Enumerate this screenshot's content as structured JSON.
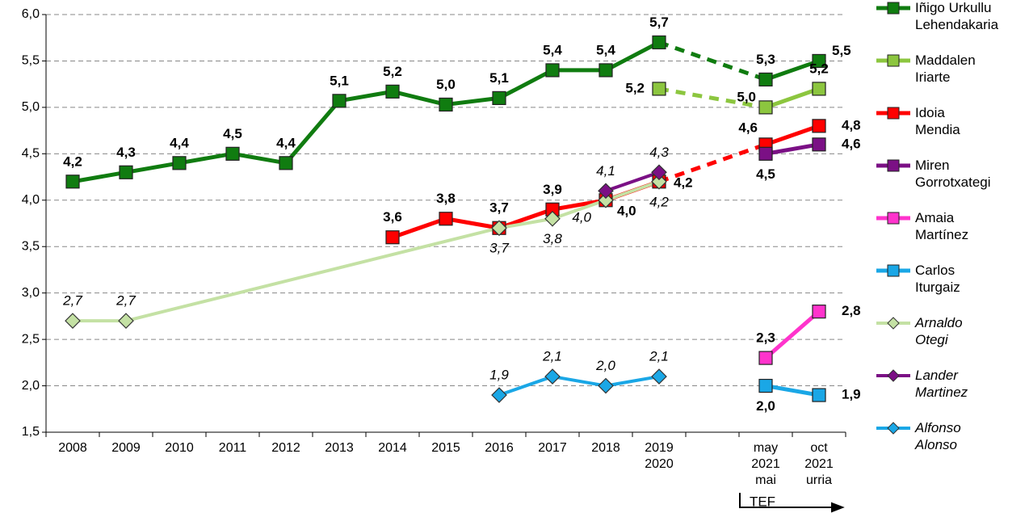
{
  "chart_data": {
    "type": "line",
    "categories": [
      "2008",
      "2009",
      "2010",
      "2011",
      "2012",
      "2013",
      "2014",
      "2015",
      "2016",
      "2017",
      "2018",
      "2019\n2020",
      null,
      "may\n2021\nmai",
      "oct\n2021\nurria"
    ],
    "ylim": [
      1.5,
      6.0
    ],
    "yticks": [
      {
        "value": 1.5,
        "label": "1,5"
      },
      {
        "value": 2.0,
        "label": "2,0"
      },
      {
        "value": 2.5,
        "label": "2,5"
      },
      {
        "value": 3.0,
        "label": "3,0"
      },
      {
        "value": 3.5,
        "label": "3,5"
      },
      {
        "value": 4.0,
        "label": "4,0"
      },
      {
        "value": 4.5,
        "label": "4,5"
      },
      {
        "value": 5.0,
        "label": "5,0"
      },
      {
        "value": 5.5,
        "label": "5,5"
      },
      {
        "value": 6.0,
        "label": "6,0"
      }
    ],
    "grid": true,
    "legend": "right",
    "annotations": [
      "TEF"
    ],
    "series": [
      {
        "name": "Iñigo Urkullu\nLehendakaria",
        "color": "#107c10",
        "marker": "square",
        "gap_style": "dashed",
        "values": [
          4.2,
          4.3,
          4.4,
          4.5,
          4.4,
          5.07,
          5.17,
          5.03,
          5.1,
          5.4,
          5.4,
          5.7,
          null,
          5.3,
          5.5
        ],
        "value_labels": [
          "4,2",
          "4,3",
          "4,4",
          "4,5",
          "4,4",
          "5,1",
          "5,2",
          "5,0",
          "5,1",
          "5,4",
          "5,4",
          "5,7",
          null,
          "5,3",
          "5,5"
        ]
      },
      {
        "name": "Maddalen\nIriarte",
        "color": "#8cc63f",
        "marker": "square",
        "gap_style": "dashed",
        "values": [
          null,
          null,
          null,
          null,
          null,
          null,
          null,
          null,
          null,
          null,
          null,
          5.2,
          null,
          5.0,
          5.2
        ],
        "value_labels": [
          null,
          null,
          null,
          null,
          null,
          null,
          null,
          null,
          null,
          null,
          null,
          "5,2",
          null,
          "5,0",
          "5,2"
        ]
      },
      {
        "name": "Idoia\nMendia",
        "color": "#ff0000",
        "marker": "square",
        "gap_style": "dashed",
        "values": [
          null,
          null,
          null,
          null,
          null,
          null,
          3.6,
          3.8,
          3.7,
          3.9,
          4.0,
          4.2,
          null,
          4.6,
          4.8
        ],
        "value_labels": [
          null,
          null,
          null,
          null,
          null,
          null,
          "3,6",
          "3,8",
          "3,7",
          "3,9",
          "4,0",
          "4,2",
          null,
          "4,6",
          "4,8"
        ]
      },
      {
        "name": "Miren\nGorrotxategi",
        "color": "#7b1085",
        "marker": "square",
        "values": [
          null,
          null,
          null,
          null,
          null,
          null,
          null,
          null,
          null,
          null,
          null,
          null,
          null,
          4.5,
          4.6
        ],
        "value_labels": [
          null,
          null,
          null,
          null,
          null,
          null,
          null,
          null,
          null,
          null,
          null,
          null,
          null,
          "4,5",
          "4,6"
        ]
      },
      {
        "name": "Amaia\nMartínez",
        "color": "#ff33cc",
        "marker": "square",
        "values": [
          null,
          null,
          null,
          null,
          null,
          null,
          null,
          null,
          null,
          null,
          null,
          null,
          null,
          2.3,
          2.8
        ],
        "value_labels": [
          null,
          null,
          null,
          null,
          null,
          null,
          null,
          null,
          null,
          null,
          null,
          null,
          null,
          "2,3",
          "2,8"
        ]
      },
      {
        "name": "Carlos\nIturgaiz",
        "color": "#1aa7e6",
        "marker": "square",
        "values": [
          null,
          null,
          null,
          null,
          null,
          null,
          null,
          null,
          null,
          null,
          null,
          null,
          null,
          2.0,
          1.9
        ],
        "value_labels": [
          null,
          null,
          null,
          null,
          null,
          null,
          null,
          null,
          null,
          null,
          null,
          null,
          null,
          "2,0",
          "1,9"
        ]
      },
      {
        "name": "Arnaldo\nOtegi",
        "color": "#c4e1a4",
        "marker": "diamond",
        "italic": true,
        "gap_style": "solid",
        "values": [
          2.7,
          2.7,
          null,
          null,
          null,
          null,
          null,
          null,
          3.7,
          3.8,
          4.0,
          4.2,
          null,
          null,
          null
        ],
        "value_labels": [
          "2,7",
          "2,7",
          null,
          null,
          null,
          null,
          null,
          null,
          "3,7",
          "3,8",
          "4,0",
          "4,2",
          null,
          null,
          null
        ]
      },
      {
        "name": "Lander\nMartinez",
        "color": "#7b1085",
        "marker": "diamond",
        "italic": true,
        "values": [
          null,
          null,
          null,
          null,
          null,
          null,
          null,
          null,
          null,
          null,
          4.1,
          4.3,
          null,
          null,
          null
        ],
        "value_labels": [
          null,
          null,
          null,
          null,
          null,
          null,
          null,
          null,
          null,
          null,
          "4,1",
          "4,3",
          null,
          null,
          null
        ]
      },
      {
        "name": "Alfonso\nAlonso",
        "color": "#1aa7e6",
        "marker": "diamond",
        "italic": true,
        "values": [
          null,
          null,
          null,
          null,
          null,
          null,
          null,
          null,
          1.9,
          2.1,
          2.0,
          2.1,
          null,
          null,
          null
        ],
        "value_labels": [
          null,
          null,
          null,
          null,
          null,
          null,
          null,
          null,
          "1,9",
          "2,1",
          "2,0",
          "2,1",
          null,
          null,
          null
        ]
      }
    ]
  }
}
